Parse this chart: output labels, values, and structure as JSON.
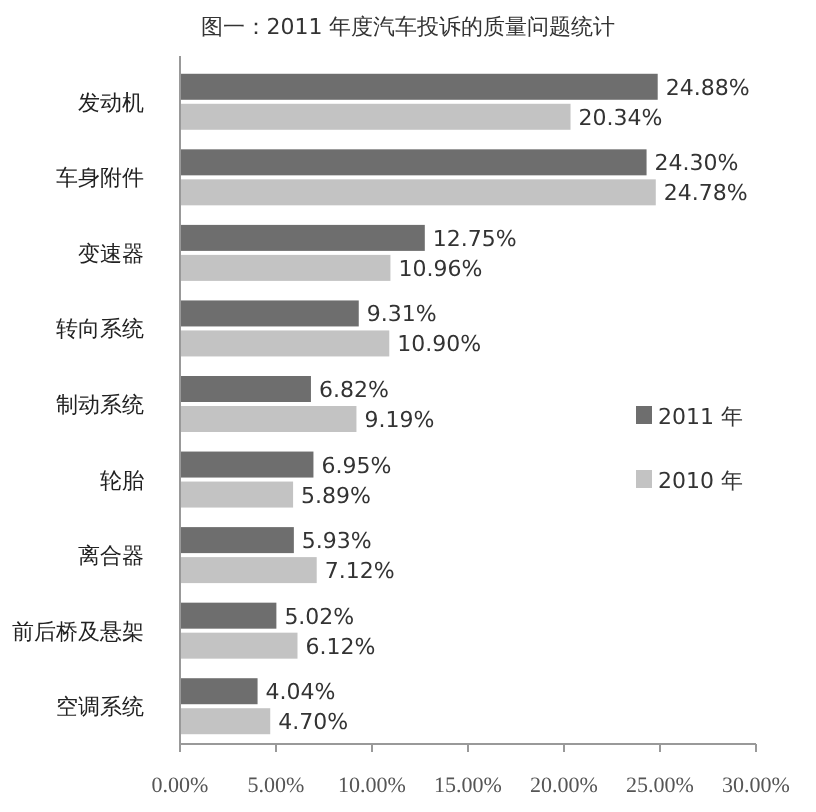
{
  "chart_data": {
    "type": "bar",
    "orientation": "horizontal",
    "title": "图一：2011 年度汽车投诉的质量问题统计",
    "categories": [
      "发动机",
      "车身附件",
      "变速器",
      "转向系统",
      "制动系统",
      "轮胎",
      "离合器",
      "前后桥及悬架",
      "空调系统"
    ],
    "series": [
      {
        "name": "2011 年",
        "color": "#6e6e6e",
        "values": [
          24.88,
          24.3,
          12.75,
          9.31,
          6.82,
          6.95,
          5.93,
          5.02,
          4.04
        ],
        "value_labels": [
          "24.88%",
          "24.30%",
          "12.75%",
          "9.31%",
          "6.82%",
          "6.95%",
          "5.93%",
          "5.02%",
          "4.04%"
        ]
      },
      {
        "name": "2010 年",
        "color": "#c3c3c3",
        "values": [
          20.34,
          24.78,
          10.96,
          10.9,
          9.19,
          5.89,
          7.12,
          6.12,
          4.7
        ],
        "value_labels": [
          "20.34%",
          "24.78%",
          "10.96%",
          "10.90%",
          "9.19%",
          "5.89%",
          "7.12%",
          "6.12%",
          "4.70%"
        ]
      }
    ],
    "xlim": [
      0,
      30
    ],
    "xticks": [
      {
        "value": 0,
        "label": "0.00%"
      },
      {
        "value": 5,
        "label": "5.00%"
      },
      {
        "value": 10,
        "label": "10.00%"
      },
      {
        "value": 15,
        "label": "15.00%"
      },
      {
        "value": 20,
        "label": "20.00%"
      },
      {
        "value": 25,
        "label": "25.00%"
      },
      {
        "value": 30,
        "label": "30.00%"
      }
    ],
    "legend": "right",
    "grid": false
  }
}
